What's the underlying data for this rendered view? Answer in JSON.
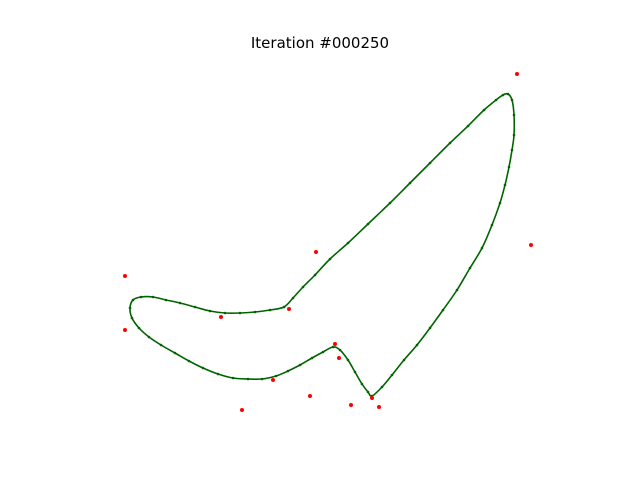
{
  "chart_data": {
    "type": "scatter",
    "title": "Iteration #000250",
    "xlabel": "",
    "ylabel": "",
    "axes_visible": false,
    "grid": false,
    "xlim": [
      80,
      560
    ],
    "ylim": [
      430,
      55
    ],
    "colors": {
      "curve": "#006400",
      "nodes": "#006400",
      "targets": "#ff0000"
    },
    "series": [
      {
        "kind": "closed-curve",
        "points": [
          [
            508,
            94
          ],
          [
            512,
            100
          ],
          [
            514,
            115
          ],
          [
            514,
            135
          ],
          [
            512,
            150
          ],
          [
            509,
            167
          ],
          [
            505,
            185
          ],
          [
            500,
            203
          ],
          [
            492,
            225
          ],
          [
            482,
            248
          ],
          [
            470,
            268
          ],
          [
            457,
            290
          ],
          [
            443,
            310
          ],
          [
            430,
            328
          ],
          [
            417,
            345
          ],
          [
            404,
            360
          ],
          [
            392,
            375
          ],
          [
            382,
            387
          ],
          [
            372,
            396
          ],
          [
            368,
            392
          ],
          [
            362,
            384
          ],
          [
            355,
            372
          ],
          [
            348,
            360
          ],
          [
            340,
            350
          ],
          [
            333,
            347
          ],
          [
            323,
            352
          ],
          [
            312,
            358
          ],
          [
            300,
            365
          ],
          [
            288,
            371
          ],
          [
            276,
            376
          ],
          [
            262,
            379
          ],
          [
            248,
            379
          ],
          [
            233,
            378
          ],
          [
            218,
            374
          ],
          [
            203,
            368
          ],
          [
            189,
            361
          ],
          [
            175,
            353
          ],
          [
            161,
            345
          ],
          [
            149,
            337
          ],
          [
            139,
            328
          ],
          [
            132,
            318
          ],
          [
            130,
            308
          ],
          [
            133,
            300
          ],
          [
            141,
            297
          ],
          [
            153,
            297
          ],
          [
            166,
            300
          ],
          [
            180,
            303
          ],
          [
            195,
            307
          ],
          [
            210,
            311
          ],
          [
            225,
            313
          ],
          [
            240,
            313
          ],
          [
            255,
            312
          ],
          [
            270,
            310
          ],
          [
            284,
            307
          ],
          [
            293,
            298
          ],
          [
            303,
            287
          ],
          [
            315,
            275
          ],
          [
            330,
            259
          ],
          [
            348,
            243
          ],
          [
            368,
            224
          ],
          [
            390,
            203
          ],
          [
            410,
            183
          ],
          [
            430,
            163
          ],
          [
            450,
            143
          ],
          [
            468,
            126
          ],
          [
            484,
            110
          ],
          [
            496,
            100
          ],
          [
            503,
            95
          ]
        ]
      },
      {
        "kind": "target-points",
        "points": [
          [
            517,
            74
          ],
          [
            531,
            245
          ],
          [
            316,
            252
          ],
          [
            125,
            276
          ],
          [
            125,
            330
          ],
          [
            221,
            317
          ],
          [
            289,
            309
          ],
          [
            335,
            344
          ],
          [
            339,
            358
          ],
          [
            273,
            380
          ],
          [
            310,
            396
          ],
          [
            351,
            405
          ],
          [
            372,
            398
          ],
          [
            379,
            407
          ],
          [
            242,
            410
          ]
        ]
      }
    ]
  }
}
